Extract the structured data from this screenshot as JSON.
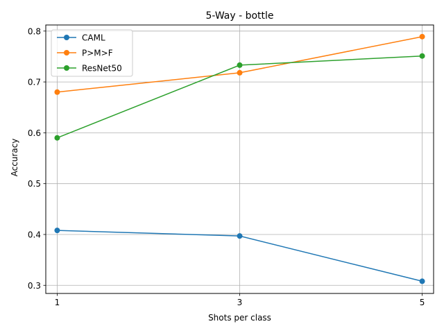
{
  "chart_data": {
    "type": "line",
    "title": "5-Way - bottle",
    "xlabel": "Shots per class",
    "ylabel": "Accuracy",
    "x": [
      1,
      3,
      5
    ],
    "x_ticks": [
      "1",
      "3",
      "5"
    ],
    "xlim": [
      0.875,
      5.125
    ],
    "ylim": [
      0.284,
      0.812
    ],
    "y_ticks": [
      0.3,
      0.4,
      0.5,
      0.6,
      0.7,
      0.8
    ],
    "y_tick_labels": [
      "0.3",
      "0.4",
      "0.5",
      "0.6",
      "0.7",
      "0.8"
    ],
    "grid": true,
    "legend_position": "upper-left",
    "series": [
      {
        "name": "CAML",
        "color": "#1f77b4",
        "values": [
          0.408,
          0.397,
          0.308
        ]
      },
      {
        "name": "P>M>F",
        "color": "#ff7f0e",
        "values": [
          0.68,
          0.718,
          0.789
        ]
      },
      {
        "name": "ResNet50",
        "color": "#2ca02c",
        "values": [
          0.59,
          0.733,
          0.751
        ]
      }
    ]
  }
}
